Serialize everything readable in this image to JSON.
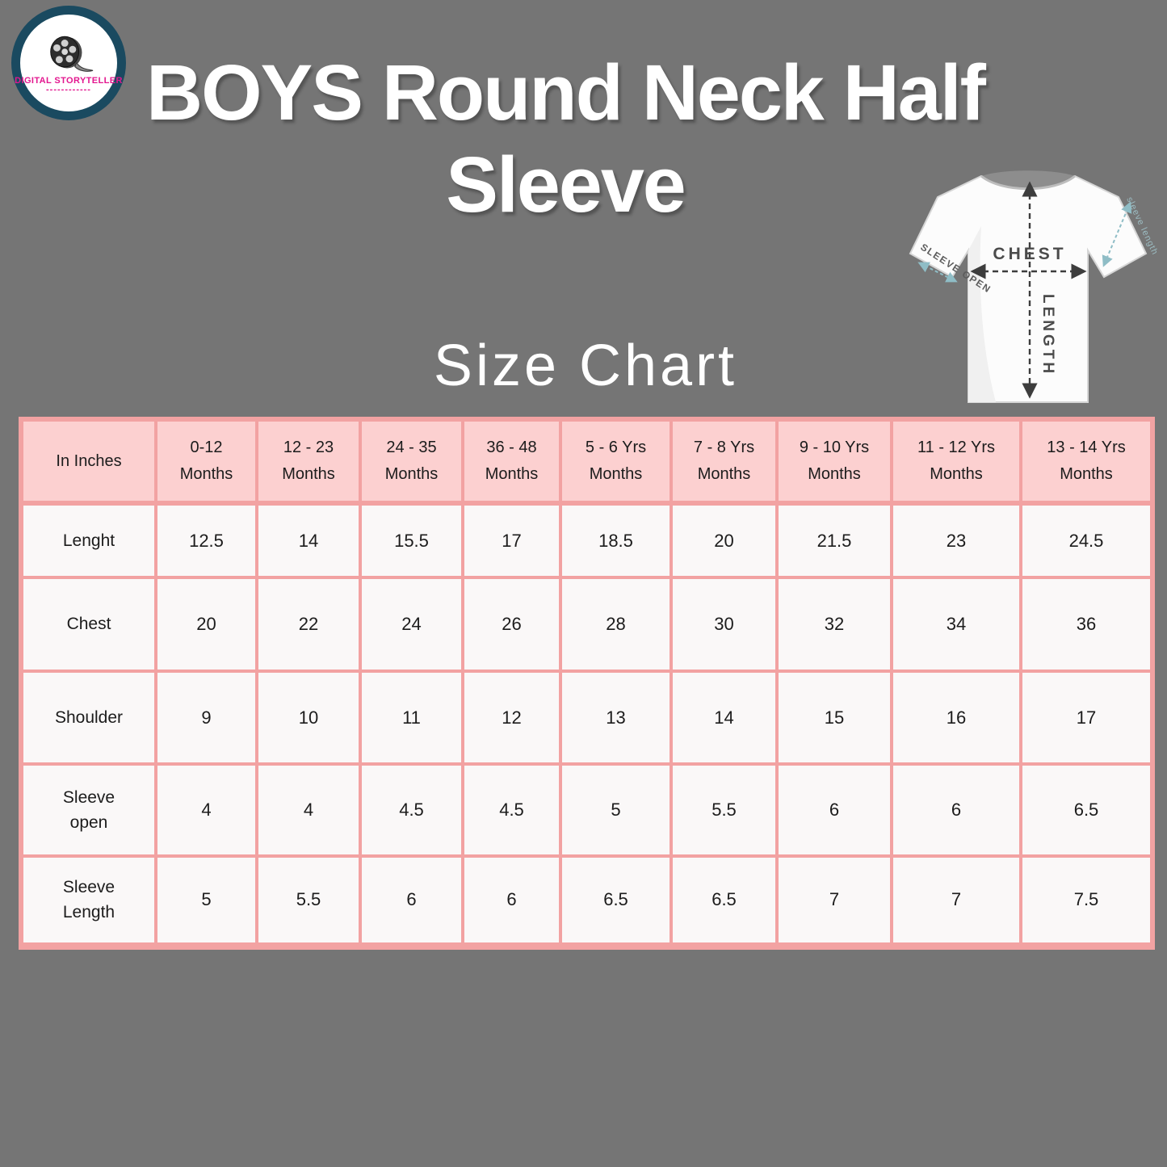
{
  "page": {
    "background_color": "#757575"
  },
  "logo": {
    "brand": "DIGITAL STORYTELLER",
    "underline_dashes": "------------"
  },
  "title": {
    "line1": "BOYS Round Neck Half",
    "line2": "Sleeve"
  },
  "subtitle": "Size Chart",
  "tshirt_diagram": {
    "chest_label": "CHEST",
    "length_label": "LENGTH",
    "sleeve_open_label": "SLEEVE OPEN",
    "sleeve_length_label": "sleeve length"
  },
  "chart_data": {
    "type": "table",
    "title": "Size Chart",
    "unit_header": "In Inches",
    "columns": [
      "0-12\nMonths",
      "12 - 23\nMonths",
      "24 - 35\nMonths",
      "36 - 48\nMonths",
      "5 - 6 Yrs\nMonths",
      "7 - 8 Yrs\nMonths",
      "9 - 10 Yrs\nMonths",
      "11 - 12  Yrs\nMonths",
      "13 - 14 Yrs\nMonths"
    ],
    "rows": [
      {
        "label": "Lenght",
        "values": [
          "12.5",
          "14",
          "15.5",
          "17",
          "18.5",
          "20",
          "21.5",
          "23",
          "24.5"
        ]
      },
      {
        "label": "Chest",
        "values": [
          "20",
          "22",
          "24",
          "26",
          "28",
          "30",
          "32",
          "34",
          "36"
        ]
      },
      {
        "label": "Shoulder",
        "values": [
          "9",
          "10",
          "11",
          "12",
          "13",
          "14",
          "15",
          "16",
          "17"
        ]
      },
      {
        "label": "Sleeve\nopen",
        "values": [
          "4",
          "4",
          "4.5",
          "4.5",
          "5",
          "5.5",
          "6",
          "6",
          "6.5"
        ]
      },
      {
        "label": "Sleeve\nLength",
        "values": [
          "5",
          "5.5",
          "6",
          "6",
          "6.5",
          "6.5",
          "7",
          "7",
          "7.5"
        ]
      }
    ],
    "colors": {
      "background": "#757575",
      "header_fill": "#fcd0d0",
      "cell_fill": "#faf8f8",
      "border": "#f2a2a2",
      "title_text": "#ffffff",
      "table_text": "#1c1c1c"
    }
  }
}
